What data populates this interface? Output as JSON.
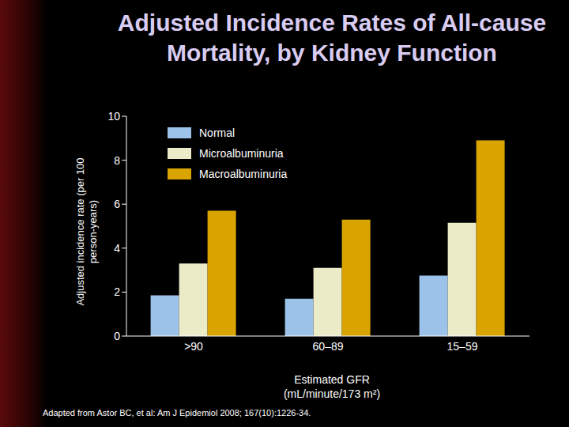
{
  "chart_data": {
    "type": "bar",
    "title": "Adjusted Incidence Rates of All-cause Mortality, by Kidney Function",
    "categories": [
      ">90",
      "60–89",
      "15–59"
    ],
    "series": [
      {
        "name": "Normal",
        "color": "#9cc2ea",
        "values": [
          1.85,
          1.7,
          2.75
        ]
      },
      {
        "name": "Microalbuminuria",
        "color": "#ecebc8",
        "values": [
          3.3,
          3.1,
          5.15
        ]
      },
      {
        "name": "Macroalbuminuria",
        "color": "#d9a400",
        "values": [
          5.7,
          5.3,
          8.9
        ]
      }
    ],
    "x_label": "Estimated GFR (mL/minute/173 m²)",
    "y_label": "Adjusted incidence rate (per 100 person-years)",
    "ylim": [
      0,
      10
    ],
    "yticks": [
      0,
      2,
      4,
      6,
      8,
      10
    ],
    "grid": false,
    "legend": "top-left",
    "source": "Adapted from Astor BC, et al: Am J Epidemiol 2008; 167(10):1226-34."
  }
}
